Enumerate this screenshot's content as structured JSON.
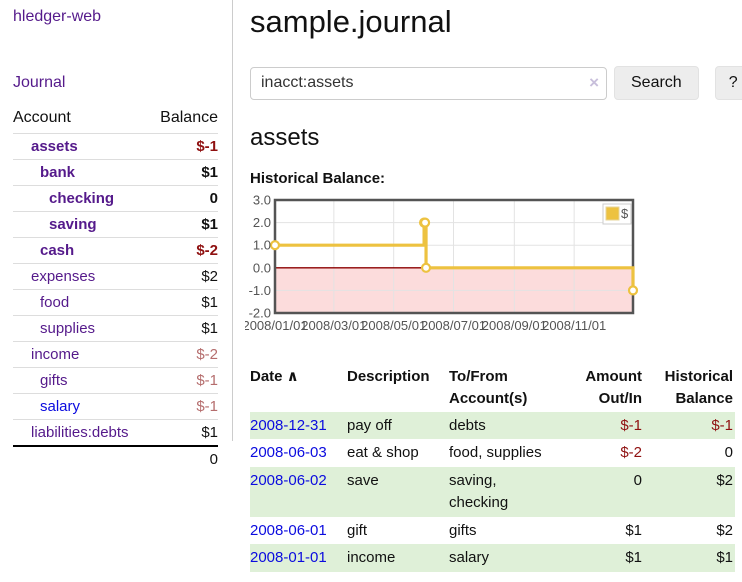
{
  "app": {
    "title": "hledger-web"
  },
  "sidebar": {
    "journal_link": "Journal",
    "accounts_table": {
      "headers": {
        "account": "Account",
        "balance": "Balance"
      },
      "rows": [
        {
          "name": "assets",
          "depth": 1,
          "bold": true,
          "balance": "$-1",
          "balance_style": "neg-strong",
          "link_color": "purple"
        },
        {
          "name": "bank",
          "depth": 2,
          "bold": true,
          "balance": "$1",
          "balance_style": "pos",
          "link_color": "purple"
        },
        {
          "name": "checking",
          "depth": 3,
          "bold": true,
          "balance": "0",
          "balance_style": "pos",
          "link_color": "purple"
        },
        {
          "name": "saving",
          "depth": 3,
          "bold": true,
          "balance": "$1",
          "balance_style": "pos",
          "link_color": "purple"
        },
        {
          "name": "cash",
          "depth": 2,
          "bold": true,
          "balance": "$-2",
          "balance_style": "neg-strong",
          "link_color": "purple"
        },
        {
          "name": "expenses",
          "depth": 1,
          "bold": false,
          "balance": "$2",
          "balance_style": "pos",
          "link_color": "purple"
        },
        {
          "name": "food",
          "depth": 2,
          "bold": false,
          "balance": "$1",
          "balance_style": "pos",
          "link_color": "purple"
        },
        {
          "name": "supplies",
          "depth": 2,
          "bold": false,
          "balance": "$1",
          "balance_style": "pos",
          "link_color": "purple"
        },
        {
          "name": "income",
          "depth": 1,
          "bold": false,
          "balance": "$-2",
          "balance_style": "neg-soft",
          "link_color": "purple"
        },
        {
          "name": "gifts",
          "depth": 2,
          "bold": false,
          "balance": "$-1",
          "balance_style": "neg-soft",
          "link_color": "purple"
        },
        {
          "name": "salary",
          "depth": 2,
          "bold": false,
          "balance": "$-1",
          "balance_style": "neg-soft",
          "link_color": "blue"
        },
        {
          "name": "liabilities:debts",
          "depth": 1,
          "bold": false,
          "balance": "$1",
          "balance_style": "pos",
          "link_color": "purple"
        }
      ],
      "total": "0"
    }
  },
  "main": {
    "title": "sample.journal",
    "search": {
      "value": "inacct:assets",
      "clear_icon": "×",
      "button": "Search",
      "help_button": "?"
    },
    "account_heading": "assets",
    "chart_label": "Historical Balance:",
    "register": {
      "headers": [
        {
          "lines": [
            "Date"
          ],
          "sort": "∧",
          "align": "left"
        },
        {
          "lines": [
            "Description"
          ],
          "align": "left"
        },
        {
          "lines": [
            "To/From",
            "Account(s)"
          ],
          "align": "left"
        },
        {
          "lines": [
            "Amount",
            "Out/In"
          ],
          "align": "right"
        },
        {
          "lines": [
            "Historical",
            "Balance"
          ],
          "align": "right"
        }
      ],
      "rows": [
        {
          "date": "2008-12-31",
          "description": "pay off",
          "accounts": "debts",
          "amount": "$-1",
          "amount_neg": true,
          "balance": "$-1",
          "balance_neg": true
        },
        {
          "date": "2008-06-03",
          "description": "eat & shop",
          "accounts": "food, supplies",
          "amount": "$-2",
          "amount_neg": true,
          "balance": "0",
          "balance_neg": false
        },
        {
          "date": "2008-06-02",
          "description": "save",
          "accounts": "saving, checking",
          "amount": "0",
          "amount_neg": false,
          "balance": "$2",
          "balance_neg": false
        },
        {
          "date": "2008-06-01",
          "description": "gift",
          "accounts": "gifts",
          "amount": "$1",
          "amount_neg": false,
          "balance": "$2",
          "balance_neg": false
        },
        {
          "date": "2008-01-01",
          "description": "income",
          "accounts": "salary",
          "amount": "$1",
          "amount_neg": false,
          "balance": "$1",
          "balance_neg": false
        }
      ]
    }
  },
  "chart_data": {
    "type": "line",
    "title": "Historical Balance",
    "step": true,
    "series": [
      {
        "name": "$",
        "color": "#EDC240",
        "points": [
          {
            "date": "2008-01-01",
            "value": 1
          },
          {
            "date": "2008-06-01",
            "value": 2
          },
          {
            "date": "2008-06-02",
            "value": 2
          },
          {
            "date": "2008-06-03",
            "value": 0
          },
          {
            "date": "2008-12-31",
            "value": -1
          }
        ]
      }
    ],
    "xrange": [
      "2008-01-01",
      "2008-12-31"
    ],
    "ylim": [
      -2,
      3
    ],
    "yticks": [
      {
        "v": 3,
        "label": "3.0"
      },
      {
        "v": 2,
        "label": "2.0"
      },
      {
        "v": 1,
        "label": "1.0"
      },
      {
        "v": 0,
        "label": "0.0"
      },
      {
        "v": -1,
        "label": "-1.0"
      },
      {
        "v": -2,
        "label": "-2.0"
      }
    ],
    "xticks": [
      {
        "date": "2008-01-01",
        "label": "2008/01/01"
      },
      {
        "date": "2008-03-01",
        "label": "2008/03/01"
      },
      {
        "date": "2008-05-01",
        "label": "2008/05/01"
      },
      {
        "date": "2008-07-01",
        "label": "2008/07/01"
      },
      {
        "date": "2008-09-01",
        "label": "2008/09/01"
      },
      {
        "date": "2008-11-01",
        "label": "2008/11/01"
      }
    ],
    "grid": true,
    "legend_position": "top-right",
    "colors": {
      "negative_fill": "#fcdcdc",
      "zero_line": "#8b0000",
      "grid": "#e3e3e3",
      "border": "#545454",
      "tick_text": "#545454"
    }
  }
}
